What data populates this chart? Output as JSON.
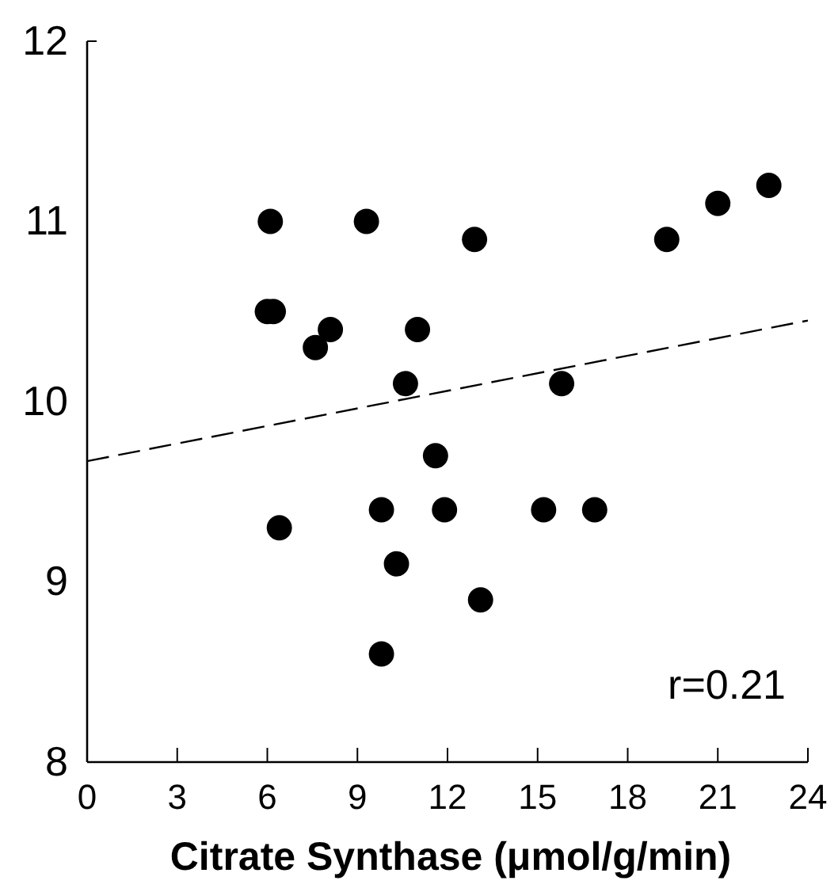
{
  "chart_data": {
    "type": "scatter",
    "xlabel": "Citrate Synthase (μmol/g/min)",
    "xlim": [
      0,
      24
    ],
    "xticks": [
      0,
      3,
      6,
      9,
      12,
      15,
      18,
      21,
      24
    ],
    "ylim": [
      8,
      12
    ],
    "yticks": [
      8,
      9,
      10,
      11,
      12
    ],
    "grid": false,
    "marker": "circle",
    "series": [
      {
        "color": "#000000",
        "x": [
          6.1,
          6.0,
          6.2,
          6.4,
          7.6,
          8.1,
          9.3,
          9.8,
          10.3,
          9.8,
          10.6,
          11.0,
          11.6,
          11.9,
          12.9,
          13.1,
          15.2,
          16.9,
          15.8,
          19.3,
          21.0,
          22.7
        ],
        "values": [
          11.0,
          10.5,
          10.5,
          9.3,
          10.3,
          10.4,
          11.0,
          9.4,
          9.1,
          8.6,
          10.1,
          10.4,
          9.7,
          9.4,
          10.9,
          8.9,
          9.4,
          9.4,
          10.1,
          10.9,
          11.1,
          11.2
        ]
      },
      {
        "type": "line",
        "color": "#000000",
        "line_style": "dashed",
        "marker": "none",
        "x": [
          0,
          24
        ],
        "values": [
          9.67,
          10.45
        ]
      }
    ],
    "annotations": [
      "r=0.21"
    ]
  }
}
